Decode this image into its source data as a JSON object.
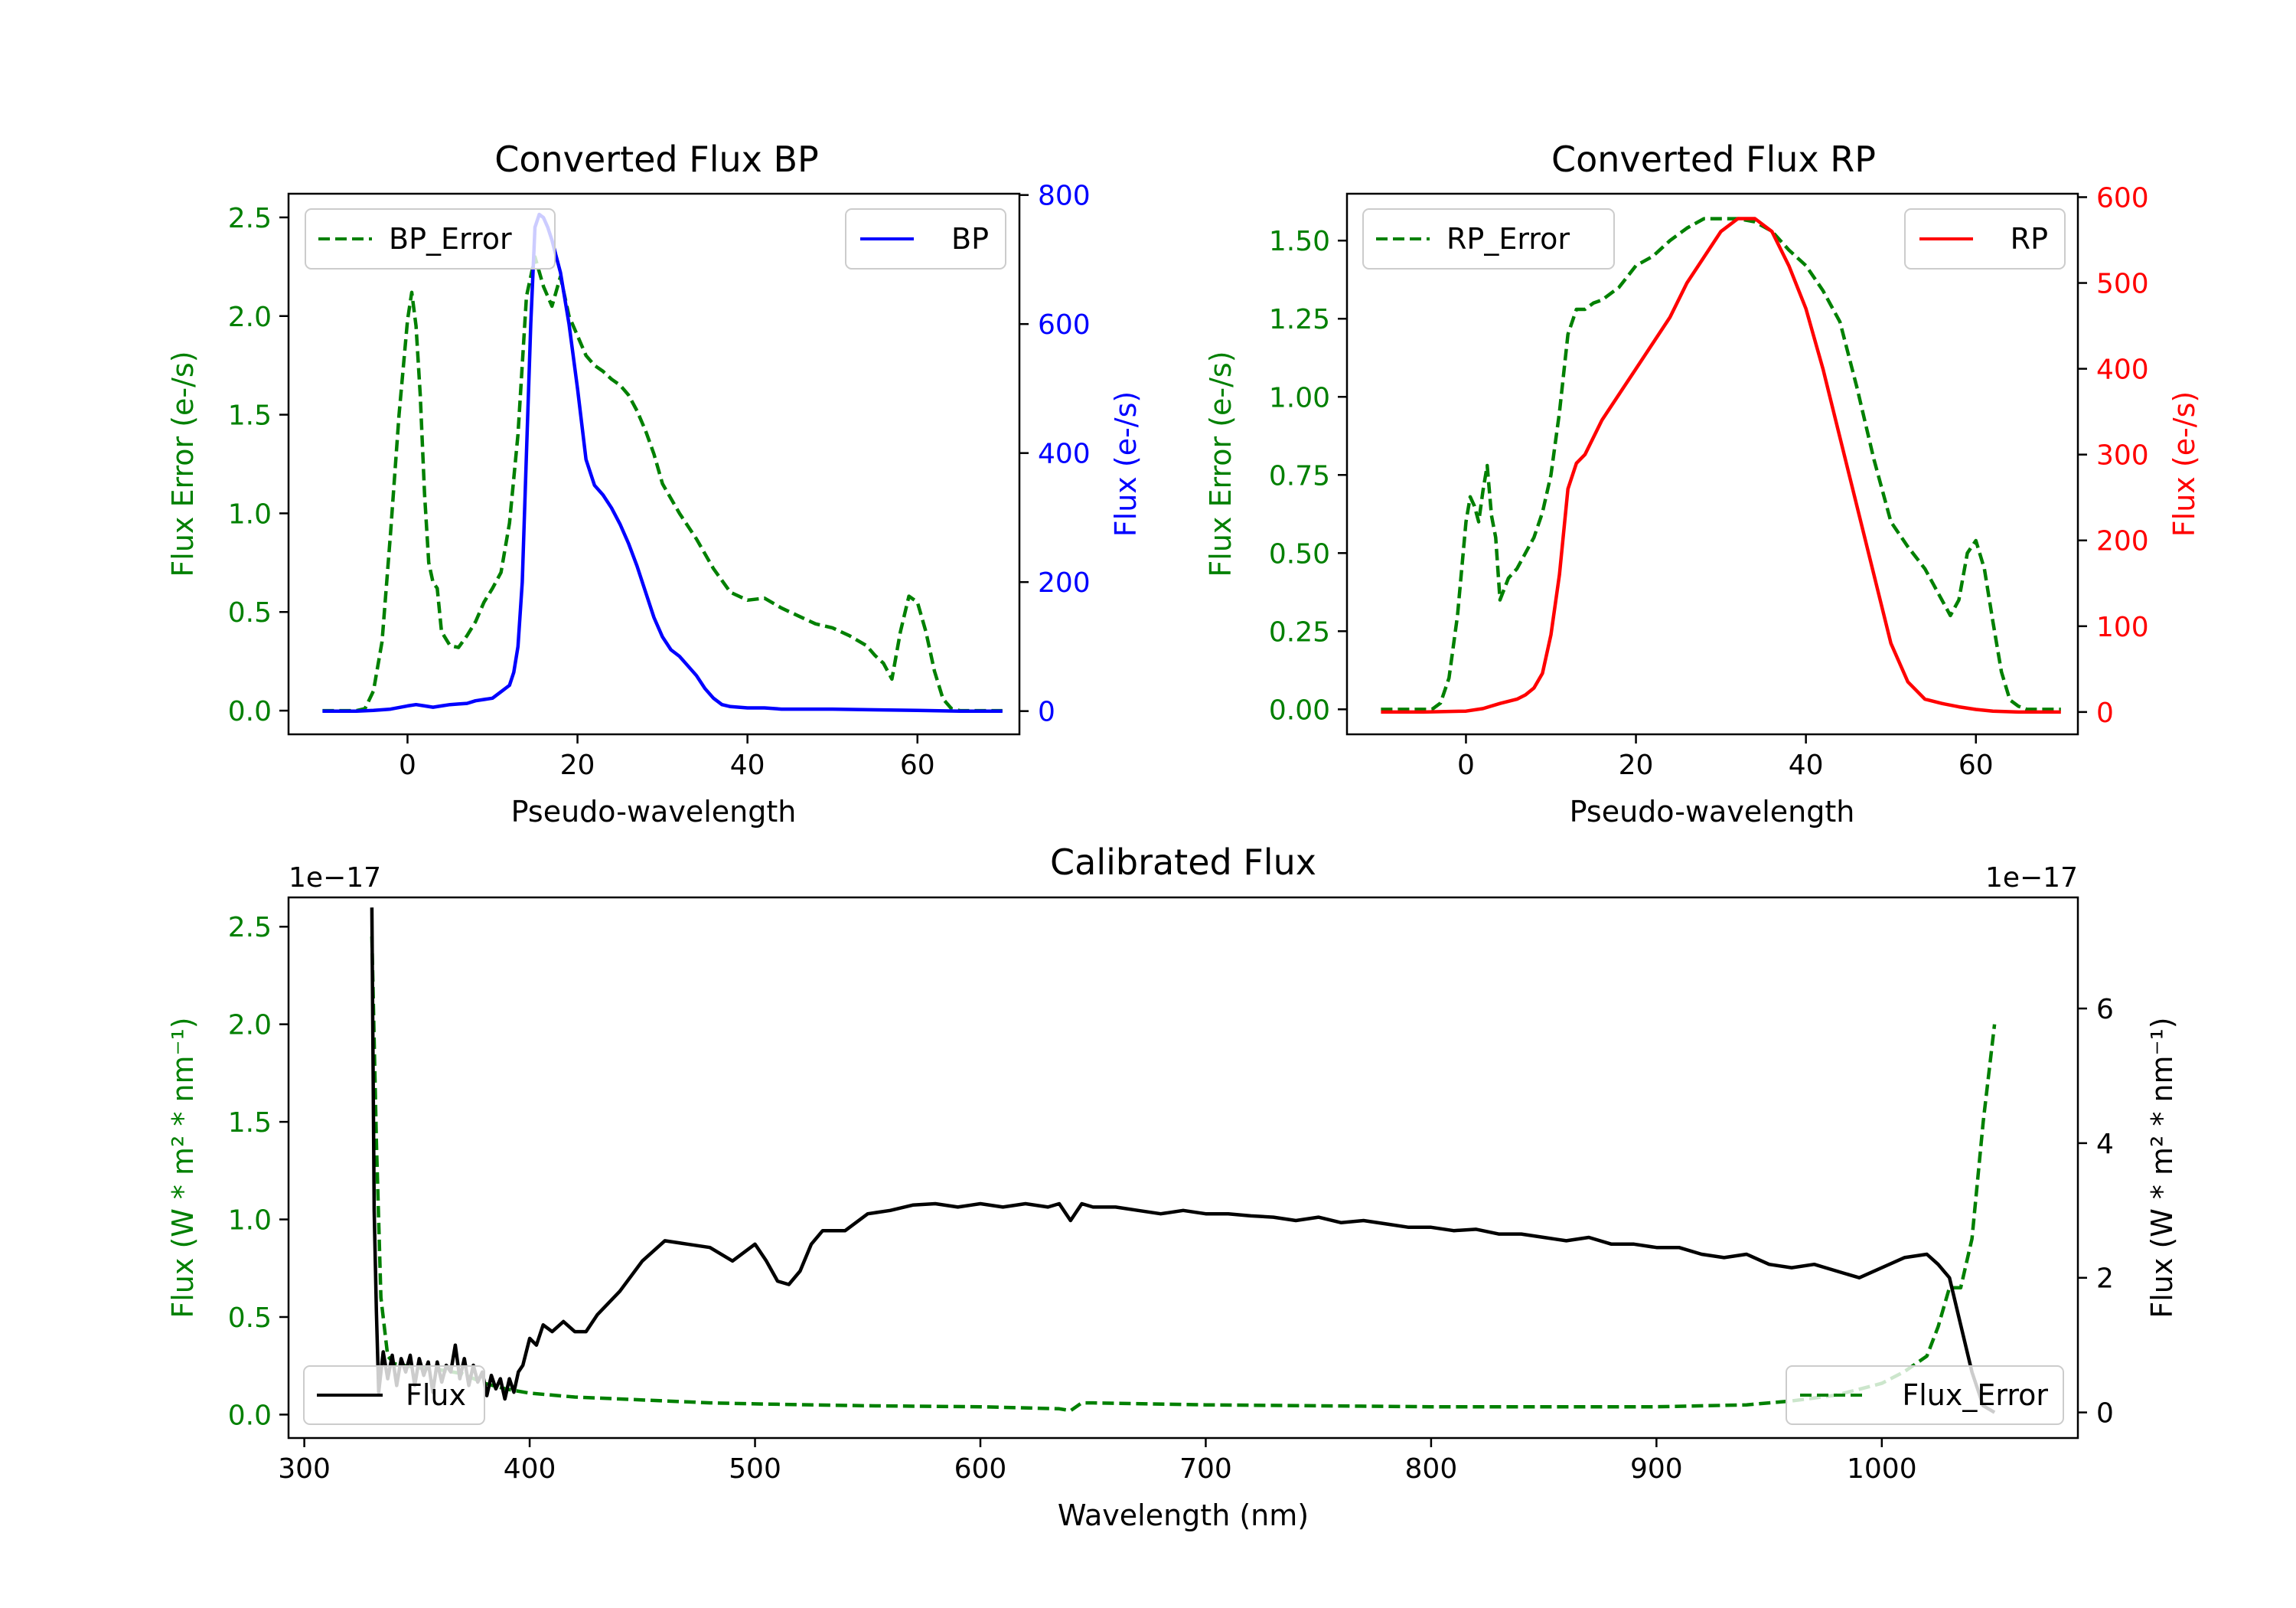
{
  "colors": {
    "green": "#008000",
    "blue": "#0000ff",
    "red": "#ff0000",
    "black": "#000000"
  },
  "chart_data": [
    {
      "type": "line",
      "title": "Converted Flux BP",
      "xlabel": "Pseudo-wavelength",
      "xlim": [
        -14,
        72
      ],
      "xticks": [
        0,
        20,
        40,
        60
      ],
      "ylabel_left": "Flux Error (e-/s)",
      "ylim_left": [
        -0.12,
        2.62
      ],
      "yticks_left": [
        0.0,
        0.5,
        1.0,
        1.5,
        2.0,
        2.5
      ],
      "ylabel_right": "Flux (e-/s)",
      "ylim_right": [
        -36,
        802
      ],
      "yticks_right": [
        0,
        200,
        400,
        600,
        800
      ],
      "legend_left": "top-left",
      "legend_right": "top-right",
      "series": [
        {
          "name": "BP_Error",
          "axis": "left",
          "style": "dashed",
          "color": "green",
          "x": [
            -10,
            -6,
            -5,
            -4,
            -3,
            -2,
            -1,
            0,
            0.5,
            1,
            1.5,
            2,
            2.5,
            3,
            3.5,
            4,
            5,
            6,
            7,
            8,
            9,
            10,
            11,
            12,
            13,
            14,
            15,
            16,
            17,
            18,
            19,
            20,
            21,
            22,
            23,
            24,
            25,
            26,
            27,
            28,
            29,
            30,
            32,
            34,
            36,
            38,
            40,
            42,
            44,
            46,
            48,
            50,
            52,
            54,
            55,
            56,
            57,
            58,
            59,
            60,
            61,
            62,
            63,
            64,
            65,
            66,
            68,
            70
          ],
          "y": [
            0,
            0,
            0.01,
            0.1,
            0.35,
            0.9,
            1.5,
            1.98,
            2.12,
            1.95,
            1.6,
            1.1,
            0.75,
            0.65,
            0.62,
            0.4,
            0.33,
            0.32,
            0.38,
            0.45,
            0.55,
            0.62,
            0.7,
            0.95,
            1.4,
            2.1,
            2.3,
            2.15,
            2.05,
            2.2,
            2.0,
            1.9,
            1.8,
            1.75,
            1.72,
            1.68,
            1.65,
            1.6,
            1.52,
            1.42,
            1.3,
            1.15,
            1.0,
            0.87,
            0.72,
            0.6,
            0.56,
            0.57,
            0.52,
            0.48,
            0.44,
            0.42,
            0.38,
            0.33,
            0.28,
            0.24,
            0.16,
            0.4,
            0.58,
            0.55,
            0.4,
            0.2,
            0.06,
            0.01,
            0,
            0,
            0,
            0
          ]
        },
        {
          "name": "BP",
          "axis": "right",
          "style": "solid",
          "color": "blue",
          "x": [
            -10,
            -6,
            -4,
            -2,
            0,
            1,
            2,
            3,
            4,
            5,
            6,
            7,
            8,
            9,
            10,
            11,
            12,
            12.5,
            13,
            13.5,
            14,
            14.5,
            15,
            15.5,
            16,
            16.5,
            17,
            18,
            19,
            20,
            21,
            22,
            23,
            24,
            25,
            26,
            27,
            28,
            29,
            30,
            31,
            32,
            33,
            34,
            35,
            36,
            37,
            38,
            40,
            42,
            44,
            50,
            55,
            60,
            65,
            70
          ],
          "y": [
            0,
            0,
            1,
            3,
            8,
            10,
            8,
            6,
            8,
            10,
            11,
            12,
            16,
            18,
            20,
            30,
            40,
            60,
            100,
            200,
            400,
            600,
            750,
            770,
            765,
            750,
            730,
            680,
            600,
            500,
            390,
            350,
            335,
            315,
            290,
            260,
            225,
            185,
            145,
            115,
            95,
            85,
            70,
            55,
            35,
            20,
            10,
            7,
            5,
            5,
            3,
            3,
            2,
            1,
            0,
            0
          ]
        }
      ]
    },
    {
      "type": "line",
      "title": "Converted Flux RP",
      "xlabel": "Pseudo-wavelength",
      "xlim": [
        -14,
        72
      ],
      "xticks": [
        0,
        20,
        40,
        60
      ],
      "ylabel_left": "Flux Error (e-/s)",
      "ylim_left": [
        -0.08,
        1.65
      ],
      "yticks_left": [
        0.0,
        0.25,
        0.5,
        0.75,
        1.0,
        1.25,
        1.5
      ],
      "ylabel_right": "Flux (e-/s)",
      "ylim_right": [
        -26,
        604
      ],
      "yticks_right": [
        0,
        100,
        200,
        300,
        400,
        500,
        600
      ],
      "legend_left": "top-left",
      "legend_right": "top-right",
      "series": [
        {
          "name": "RP_Error",
          "axis": "left",
          "style": "dashed",
          "color": "green",
          "x": [
            -10,
            -4,
            -3,
            -2,
            -1,
            0,
            0.5,
            1,
            1.5,
            2,
            2.5,
            3,
            3.5,
            4,
            5,
            6,
            7,
            8,
            9,
            10,
            11,
            12,
            13,
            14,
            15,
            16,
            17,
            18,
            20,
            22,
            24,
            26,
            28,
            30,
            32,
            34,
            36,
            38,
            40,
            42,
            44,
            46,
            48,
            50,
            52,
            54,
            55,
            56,
            57,
            58,
            59,
            60,
            61,
            62,
            63,
            64,
            65,
            66,
            68,
            70
          ],
          "y": [
            0,
            0,
            0.02,
            0.1,
            0.3,
            0.6,
            0.68,
            0.65,
            0.6,
            0.7,
            0.78,
            0.62,
            0.55,
            0.35,
            0.42,
            0.45,
            0.5,
            0.55,
            0.63,
            0.75,
            0.95,
            1.2,
            1.28,
            1.28,
            1.3,
            1.31,
            1.33,
            1.35,
            1.42,
            1.45,
            1.5,
            1.54,
            1.57,
            1.57,
            1.57,
            1.56,
            1.53,
            1.47,
            1.42,
            1.34,
            1.24,
            1.03,
            0.8,
            0.6,
            0.52,
            0.45,
            0.4,
            0.35,
            0.3,
            0.35,
            0.5,
            0.54,
            0.45,
            0.28,
            0.12,
            0.03,
            0.01,
            0,
            0,
            0
          ]
        },
        {
          "name": "RP",
          "axis": "right",
          "style": "solid",
          "color": "red",
          "x": [
            -10,
            -5,
            0,
            2,
            4,
            6,
            7,
            8,
            9,
            10,
            11,
            12,
            13,
            14,
            16,
            18,
            20,
            22,
            24,
            26,
            28,
            30,
            32,
            34,
            36,
            38,
            40,
            42,
            44,
            46,
            48,
            50,
            52,
            54,
            56,
            58,
            60,
            62,
            65,
            70
          ],
          "y": [
            0,
            0,
            1,
            4,
            10,
            15,
            20,
            28,
            45,
            90,
            160,
            260,
            290,
            300,
            340,
            370,
            400,
            430,
            460,
            500,
            530,
            560,
            575,
            575,
            560,
            520,
            470,
            400,
            320,
            240,
            160,
            80,
            35,
            15,
            10,
            6,
            3,
            1,
            0,
            0
          ]
        }
      ]
    },
    {
      "type": "line",
      "title": "Calibrated Flux",
      "xlabel": "Wavelength (nm)",
      "xlim": [
        293,
        1087
      ],
      "xticks": [
        300,
        400,
        500,
        600,
        700,
        800,
        900,
        1000
      ],
      "ylabel_left": "Flux (W * m² * nm⁻¹)",
      "left_offset": "1e−17",
      "ylim_left": [
        -0.12,
        2.65
      ],
      "yticks_left": [
        0.0,
        0.5,
        1.0,
        1.5,
        2.0,
        2.5
      ],
      "ylabel_right": "Flux (W * m² * nm⁻¹)",
      "right_offset": "1e−17",
      "ylim_right": [
        -0.38,
        7.65
      ],
      "yticks_right": [
        0,
        2,
        4,
        6
      ],
      "legend_left": "bottom-left",
      "legend_right": "bottom-right",
      "series": [
        {
          "name": "Flux_Error",
          "axis": "left",
          "style": "dashed",
          "color": "green",
          "x": [
            330,
            332,
            334,
            337,
            340,
            345,
            350,
            360,
            370,
            380,
            390,
            400,
            420,
            440,
            460,
            480,
            500,
            550,
            600,
            635,
            640,
            645,
            650,
            700,
            800,
            900,
            940,
            960,
            980,
            1000,
            1010,
            1020,
            1025,
            1030,
            1035,
            1040,
            1045,
            1050
          ],
          "y": [
            2.45,
            1.4,
            0.6,
            0.3,
            0.26,
            0.25,
            0.24,
            0.23,
            0.21,
            0.16,
            0.13,
            0.11,
            0.09,
            0.08,
            0.07,
            0.06,
            0.055,
            0.045,
            0.04,
            0.03,
            0.02,
            0.06,
            0.06,
            0.05,
            0.04,
            0.04,
            0.05,
            0.07,
            0.1,
            0.16,
            0.22,
            0.3,
            0.45,
            0.65,
            0.65,
            0.9,
            1.5,
            2.0
          ]
        },
        {
          "name": "Flux",
          "axis": "right",
          "style": "solid",
          "color": "black",
          "x": [
            330,
            331,
            332,
            333,
            335,
            337,
            339,
            341,
            343,
            345,
            347,
            349,
            351,
            353,
            355,
            357,
            359,
            361,
            363,
            365,
            367,
            369,
            371,
            373,
            375,
            377,
            379,
            381,
            383,
            385,
            387,
            389,
            391,
            393,
            395,
            397,
            400,
            403,
            406,
            410,
            415,
            420,
            425,
            430,
            440,
            450,
            460,
            470,
            480,
            490,
            500,
            505,
            510,
            515,
            520,
            525,
            530,
            535,
            540,
            550,
            560,
            570,
            580,
            590,
            600,
            610,
            620,
            630,
            635,
            640,
            645,
            650,
            660,
            670,
            680,
            690,
            700,
            710,
            720,
            730,
            740,
            750,
            760,
            770,
            780,
            790,
            800,
            810,
            820,
            830,
            840,
            850,
            860,
            870,
            880,
            890,
            900,
            910,
            920,
            930,
            940,
            950,
            960,
            970,
            980,
            990,
            1000,
            1010,
            1020,
            1025,
            1030,
            1035,
            1040,
            1045,
            1050
          ],
          "y": [
            7.5,
            3.0,
            1.5,
            0.3,
            0.9,
            0.5,
            0.85,
            0.4,
            0.8,
            0.6,
            0.85,
            0.4,
            0.8,
            0.55,
            0.75,
            0.3,
            0.75,
            0.45,
            0.7,
            0.6,
            1.0,
            0.5,
            0.8,
            0.4,
            0.7,
            0.45,
            0.6,
            0.25,
            0.55,
            0.35,
            0.5,
            0.2,
            0.5,
            0.3,
            0.6,
            0.7,
            1.1,
            1.0,
            1.3,
            1.2,
            1.35,
            1.2,
            1.2,
            1.45,
            1.8,
            2.25,
            2.55,
            2.5,
            2.45,
            2.25,
            2.5,
            2.25,
            1.95,
            1.9,
            2.1,
            2.5,
            2.7,
            2.7,
            2.7,
            2.95,
            3.0,
            3.08,
            3.1,
            3.05,
            3.1,
            3.05,
            3.1,
            3.05,
            3.1,
            2.85,
            3.1,
            3.05,
            3.05,
            3.0,
            2.95,
            3.0,
            2.95,
            2.95,
            2.92,
            2.9,
            2.85,
            2.9,
            2.82,
            2.85,
            2.8,
            2.75,
            2.75,
            2.7,
            2.72,
            2.65,
            2.65,
            2.6,
            2.55,
            2.6,
            2.5,
            2.5,
            2.45,
            2.45,
            2.35,
            2.3,
            2.35,
            2.2,
            2.15,
            2.2,
            2.1,
            2.0,
            2.15,
            2.3,
            2.35,
            2.2,
            2.0,
            1.3,
            0.6,
            0.1,
            0.0
          ]
        }
      ]
    }
  ]
}
